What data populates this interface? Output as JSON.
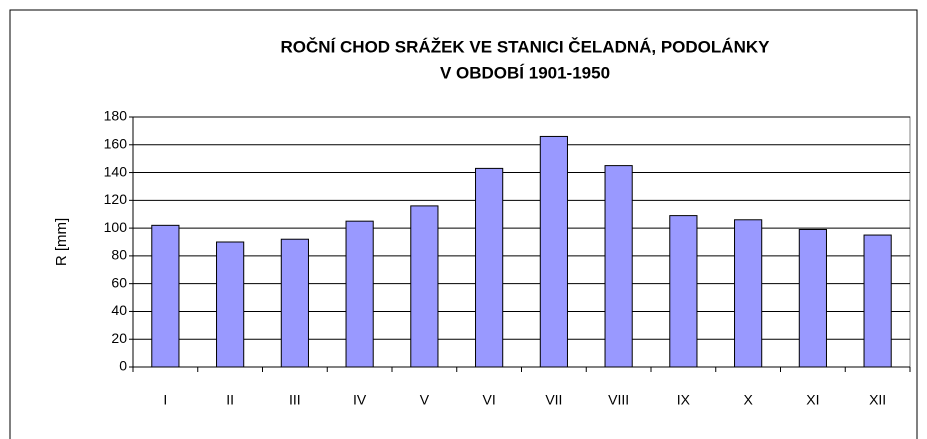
{
  "chart_data": {
    "type": "bar",
    "title": [
      "ROČNÍ CHOD SRÁŽEK VE STANICI ČELADNÁ, PODOLÁNKY",
      "V OBDOBÍ 1901-1950"
    ],
    "y_label": "R [mm]",
    "categories": [
      "I",
      "II",
      "III",
      "IV",
      "V",
      "VI",
      "VII",
      "VIII",
      "IX",
      "X",
      "XI",
      "XII"
    ],
    "values": [
      102,
      90,
      92,
      105,
      116,
      143,
      166,
      145,
      109,
      106,
      99,
      95
    ],
    "color": "#9999ff",
    "ylim": [
      0,
      180
    ],
    "yticks": [
      0,
      20,
      40,
      60,
      80,
      100,
      120,
      140,
      160,
      180
    ],
    "grid": true
  }
}
